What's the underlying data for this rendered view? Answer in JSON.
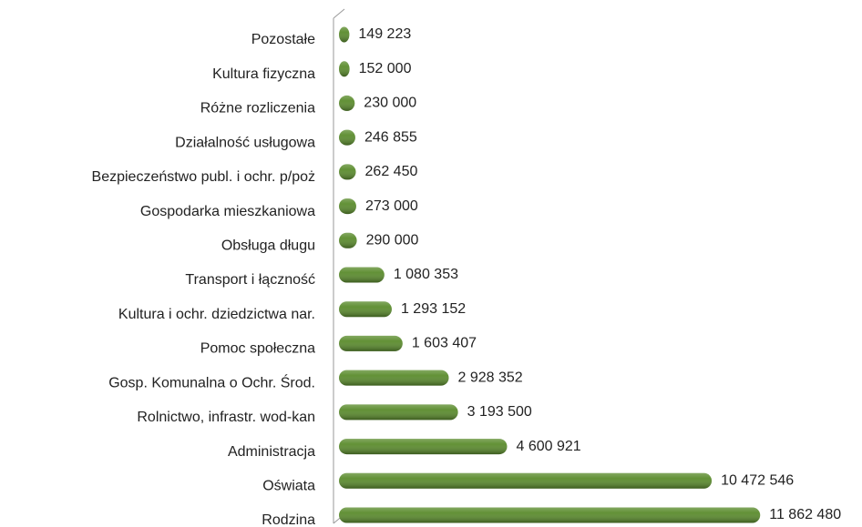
{
  "chart_data": {
    "type": "barh",
    "categories": [
      "Pozostałe",
      "Kultura fizyczna",
      "Różne rozliczenia",
      "Działalność usługowa",
      "Bezpieczeństwo publ. i ochr. p/poż",
      "Gospodarka mieszkaniowa",
      "Obsługa długu",
      "Transport i łączność",
      "Kultura i ochr. dziedzictwa nar.",
      "Pomoc społeczna",
      "Gosp. Komunalna o Ochr. Środ.",
      "Rolnictwo, infrastr. wod-kan",
      "Administracja",
      "Oświata",
      "Rodzina"
    ],
    "values": [
      149223,
      152000,
      230000,
      246855,
      262450,
      273000,
      290000,
      1080353,
      1293152,
      1603407,
      2928352,
      3193500,
      4600921,
      10472546,
      11862480
    ],
    "value_labels": [
      "149 223",
      "152 000",
      "230 000",
      "246 855",
      "262 450",
      "273 000",
      "290 000",
      "1 080 353",
      "1 293 152",
      "1 603 407",
      "2 928 352",
      "3 193 500",
      "4 600 921",
      "10 472 546",
      "11 862 480"
    ],
    "color": "#5a8b2c",
    "xlim": [
      0,
      12000000
    ]
  }
}
